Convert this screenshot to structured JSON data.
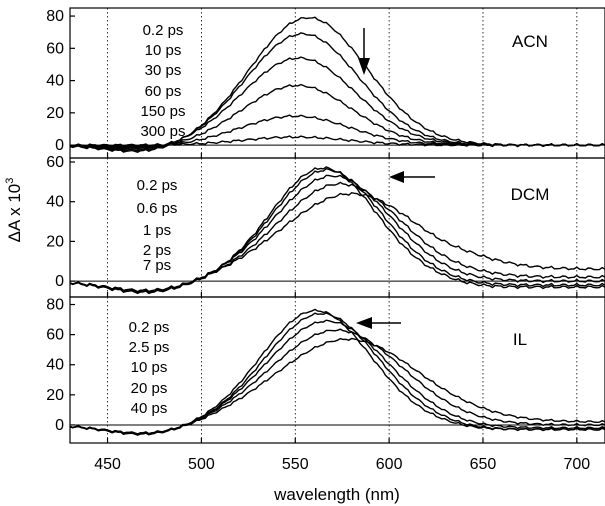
{
  "chart_data": {
    "type": "line",
    "xlabel": "wavelength (nm)",
    "ylabel_main": "ΔA x 10",
    "ylabel_sup": "3",
    "xlim": [
      430,
      715
    ],
    "x_ticks": [
      450,
      500,
      550,
      600,
      650,
      700
    ],
    "grid": "vertical dotted lines at x ticks",
    "panels": [
      {
        "solvent": "ACN",
        "ylim": [
          -8,
          85
        ],
        "y_ticks": [
          0,
          20,
          40,
          60,
          80
        ],
        "arrow": "down",
        "times": [
          "0.2 ps",
          "10 ps",
          "30 ps",
          "60 ps",
          "150 ps",
          "300 ps"
        ],
        "series": [
          {
            "name": "0.2 ps",
            "peak": 79,
            "center": 557,
            "width": 31,
            "neg": -5
          },
          {
            "name": "10 ps",
            "peak": 69,
            "center": 554,
            "width": 30,
            "neg": -4
          },
          {
            "name": "30 ps",
            "peak": 54,
            "center": 552,
            "width": 30,
            "neg": -3
          },
          {
            "name": "60 ps",
            "peak": 37,
            "center": 551,
            "width": 29,
            "neg": -2
          },
          {
            "name": "150 ps",
            "peak": 18,
            "center": 550,
            "width": 29,
            "neg": -1
          },
          {
            "name": "300 ps",
            "peak": 5,
            "center": 550,
            "width": 28,
            "neg": 0
          }
        ]
      },
      {
        "solvent": "DCM",
        "ylim": [
          -8,
          62
        ],
        "y_ticks": [
          0,
          20,
          40,
          60
        ],
        "arrow": "left",
        "times": [
          "0.2 ps",
          "0.6 ps",
          "1 ps",
          "2 ps",
          "7 ps"
        ],
        "series": [
          {
            "name": "0.2 ps",
            "peak": 44,
            "center": 580,
            "width": 37,
            "neg": -6,
            "tail": 6
          },
          {
            "name": "0.6 ps",
            "peak": 49,
            "center": 574,
            "width": 33,
            "neg": -6,
            "tail": 2
          },
          {
            "name": "1 ps",
            "peak": 53,
            "center": 570,
            "width": 31,
            "neg": -5,
            "tail": 0
          },
          {
            "name": "2 ps",
            "peak": 56,
            "center": 567,
            "width": 29,
            "neg": -5,
            "tail": -2
          },
          {
            "name": "7 ps",
            "peak": 57,
            "center": 565,
            "width": 28,
            "neg": -5,
            "tail": -3
          }
        ]
      },
      {
        "solvent": "IL",
        "ylim": [
          -12,
          85
        ],
        "y_ticks": [
          0,
          20,
          40,
          60,
          80
        ],
        "arrow": "left",
        "times": [
          "0.2 ps",
          "2.5 ps",
          "10 ps",
          "20 ps",
          "40 ps"
        ],
        "series": [
          {
            "name": "0.2 ps",
            "peak": 57,
            "center": 578,
            "width": 38,
            "neg": -7,
            "tail": 2
          },
          {
            "name": "2.5 ps",
            "peak": 63,
            "center": 572,
            "width": 35,
            "neg": -7,
            "tail": 0
          },
          {
            "name": "10 ps",
            "peak": 69,
            "center": 567,
            "width": 32,
            "neg": -6,
            "tail": -2
          },
          {
            "name": "20 ps",
            "peak": 74,
            "center": 564,
            "width": 30,
            "neg": -6,
            "tail": -3
          },
          {
            "name": "40 ps",
            "peak": 76,
            "center": 561,
            "width": 29,
            "neg": -6,
            "tail": -3
          }
        ]
      }
    ]
  }
}
